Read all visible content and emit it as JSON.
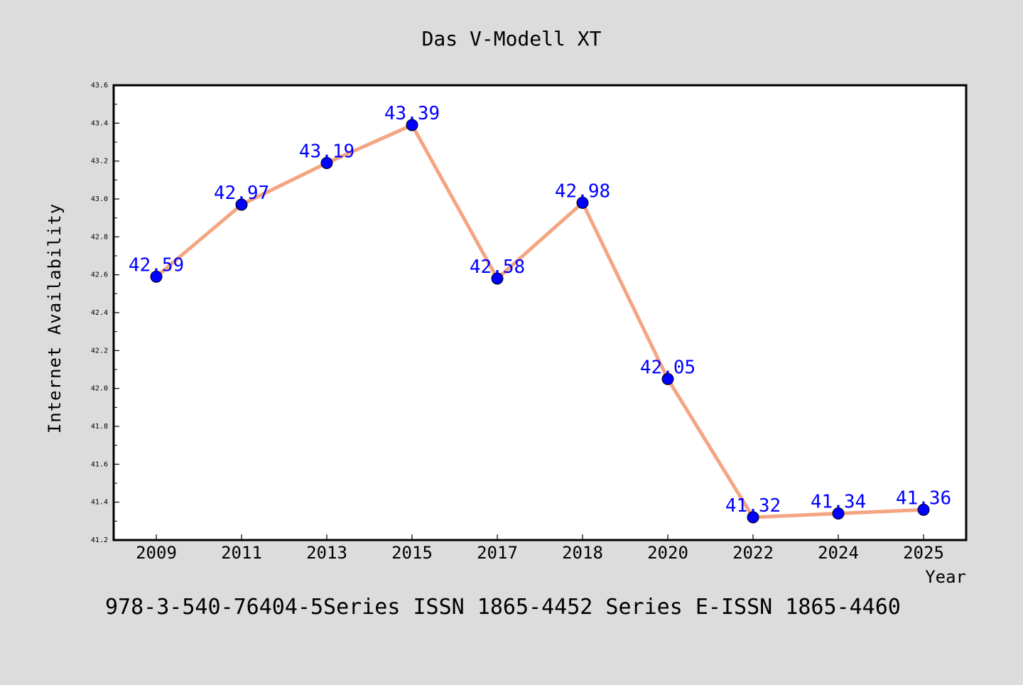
{
  "chart_data": {
    "type": "line",
    "title": "Das V-Modell XT",
    "xlabel": "Year",
    "ylabel": "Internet Availability",
    "footer": "978-3-540-76404-5Series ISSN 1865-4452 Series E-ISSN 1865-4460",
    "categories": [
      "2009",
      "2011",
      "2013",
      "2015",
      "2017",
      "2018",
      "2020",
      "2022",
      "2024",
      "2025"
    ],
    "series": [
      {
        "values": [
          42.59,
          42.97,
          43.19,
          43.39,
          42.58,
          42.98,
          42.05,
          41.32,
          41.34,
          41.36
        ],
        "labels": [
          "42.59",
          "42.97",
          "43.19",
          "43.39",
          "42.58",
          "42.98",
          "42.05",
          "41.32",
          "41.34",
          "41.36"
        ]
      }
    ],
    "ylim": [
      41.2,
      43.6
    ],
    "yticks": [
      "41.2",
      "41.4",
      "41.6",
      "41.8",
      "42.0",
      "42.2",
      "42.4",
      "42.6",
      "42.8",
      "43.0",
      "43.2",
      "43.4",
      "43.6"
    ],
    "grid": false,
    "legend": "none",
    "colors": {
      "background": "#dcdcdc",
      "plot_background": "#ffffff",
      "line": "#f4a582",
      "marker": "#0000ff",
      "label": "#0000ff",
      "text": "#000000"
    }
  }
}
